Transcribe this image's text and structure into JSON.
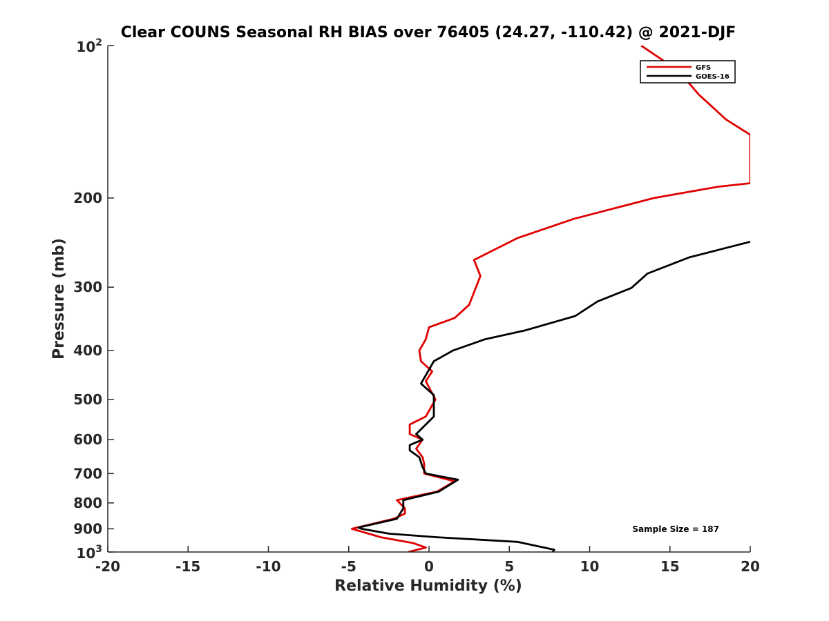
{
  "chart_data": {
    "type": "line",
    "title": "Clear COUNS Seasonal RH BIAS over 76405 (24.27, -110.42) @ 2021-DJF",
    "xlabel": "Relative Humidity (%)",
    "ylabel": "Pressure (mb)",
    "xlim": [
      -20,
      20
    ],
    "ylim": [
      100,
      1000
    ],
    "yscale": "log",
    "yreversed": true,
    "xticks": [
      -20,
      -15,
      -10,
      -5,
      0,
      5,
      10,
      15,
      20
    ],
    "xtick_labels": [
      "-20",
      "-15",
      "-10",
      "-5",
      "0",
      "5",
      "10",
      "15",
      "20"
    ],
    "yticks": [
      {
        "value": 100,
        "base": "10",
        "exp": "2"
      },
      {
        "value": 200,
        "label": "200"
      },
      {
        "value": 300,
        "label": "300"
      },
      {
        "value": 400,
        "label": "400"
      },
      {
        "value": 500,
        "label": "500"
      },
      {
        "value": 600,
        "label": "600"
      },
      {
        "value": 700,
        "label": "700"
      },
      {
        "value": 800,
        "label": "800"
      },
      {
        "value": 900,
        "label": "900"
      },
      {
        "value": 1000,
        "base": "10",
        "exp": "3"
      }
    ],
    "legend_position": "top-right",
    "annotation": "Sample Size = 187",
    "series": [
      {
        "name": "GFS",
        "color": "#e00000",
        "points": [
          [
            13.2,
            100
          ],
          [
            15.5,
            112
          ],
          [
            16.8,
            125
          ],
          [
            18.5,
            140
          ],
          [
            20.0,
            150
          ],
          [
            20.0,
            187
          ],
          [
            18.0,
            190
          ],
          [
            14.0,
            200
          ],
          [
            9.0,
            220
          ],
          [
            5.5,
            240
          ],
          [
            2.8,
            265
          ],
          [
            3.2,
            285
          ],
          [
            2.5,
            325
          ],
          [
            1.6,
            345
          ],
          [
            0.0,
            360
          ],
          [
            -0.2,
            380
          ],
          [
            -0.6,
            400
          ],
          [
            -0.5,
            420
          ],
          [
            0.2,
            440
          ],
          [
            -0.2,
            460
          ],
          [
            0.4,
            500
          ],
          [
            -0.2,
            540
          ],
          [
            -1.2,
            560
          ],
          [
            -1.2,
            585
          ],
          [
            -0.4,
            600
          ],
          [
            -0.8,
            625
          ],
          [
            -0.4,
            650
          ],
          [
            -0.3,
            670
          ],
          [
            -0.3,
            700
          ],
          [
            1.6,
            725
          ],
          [
            0.5,
            760
          ],
          [
            -2.0,
            790
          ],
          [
            -1.5,
            820
          ],
          [
            -1.5,
            840
          ],
          [
            -2.2,
            860
          ],
          [
            -4.8,
            900
          ],
          [
            -3.0,
            935
          ],
          [
            -1.0,
            960
          ],
          [
            -0.2,
            980
          ],
          [
            -1.3,
            1000
          ]
        ]
      },
      {
        "name": "GOES-16",
        "color": "#000000",
        "points": [
          [
            20.0,
            244
          ],
          [
            16.2,
            262
          ],
          [
            13.6,
            282
          ],
          [
            12.6,
            301
          ],
          [
            10.5,
            320
          ],
          [
            9.1,
            342
          ],
          [
            6.0,
            365
          ],
          [
            3.5,
            380
          ],
          [
            1.5,
            400
          ],
          [
            0.3,
            420
          ],
          [
            -0.5,
            465
          ],
          [
            0.3,
            490
          ],
          [
            0.3,
            540
          ],
          [
            -0.8,
            585
          ],
          [
            -0.4,
            600
          ],
          [
            -1.2,
            615
          ],
          [
            -1.2,
            630
          ],
          [
            -0.6,
            650
          ],
          [
            -0.4,
            680
          ],
          [
            -0.2,
            700
          ],
          [
            1.8,
            720
          ],
          [
            0.6,
            760
          ],
          [
            -1.6,
            790
          ],
          [
            -1.6,
            820
          ],
          [
            -2.0,
            860
          ],
          [
            -4.4,
            895
          ],
          [
            -4.2,
            900
          ],
          [
            -2.5,
            920
          ],
          [
            0.5,
            935
          ],
          [
            5.5,
            955
          ],
          [
            7.8,
            990
          ],
          [
            7.7,
            1000
          ]
        ]
      }
    ]
  }
}
